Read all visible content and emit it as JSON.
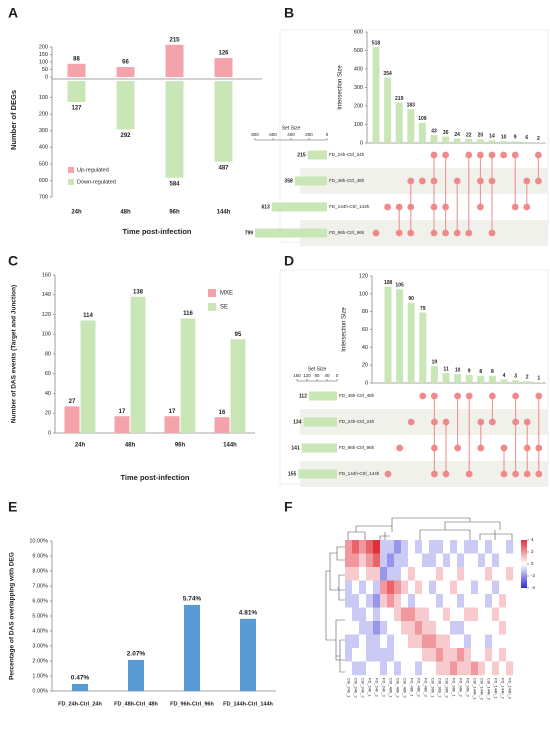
{
  "chart_data": [
    {
      "type": "diverging_bar",
      "panel": "A",
      "ylabel": "Number of DEGs",
      "xlabel": "Time post-infection",
      "categories": [
        "24h",
        "48h",
        "96h",
        "144h"
      ],
      "series": [
        {
          "name": "Up-regulated",
          "color": "#f4a3ab",
          "values": [
            88,
            66,
            215,
            126
          ]
        },
        {
          "name": "Down-regulated",
          "color": "#c9e7b6",
          "axis": "y2",
          "values": [
            127,
            292,
            584,
            487
          ]
        }
      ],
      "ylim": [
        0,
        200
      ],
      "yticks": [
        0,
        50,
        100,
        150,
        200
      ],
      "y2lim": [
        0,
        700
      ],
      "y2ticks": [
        100,
        200,
        300,
        400,
        500,
        600,
        700
      ],
      "y2_inverted": true
    },
    {
      "type": "upset",
      "panel": "B",
      "ylabel": "Intersection Size",
      "set_label": "Set Size",
      "values": [
        518,
        354,
        219,
        183,
        109,
        43,
        35,
        24,
        22,
        20,
        14,
        10,
        9,
        6,
        2
      ],
      "ylim": [
        0,
        600
      ],
      "yticks": [
        0,
        100,
        200,
        300,
        400,
        500,
        600
      ],
      "sets": [
        "FD_24h-Ctrl_24h",
        "FD_48h-Ctrl_48h",
        "FD_144h-Ctrl_144h",
        "FD_96h-Ctrl_96h"
      ],
      "set_sizes": [
        215,
        358,
        613,
        799
      ],
      "set_xlim": [
        0,
        800
      ],
      "set_xticks": [
        0,
        200,
        400,
        600,
        800
      ],
      "intersections": [
        [
          3
        ],
        [
          2
        ],
        [
          2,
          3
        ],
        [
          1,
          2,
          3
        ],
        [
          1
        ],
        [
          0,
          1,
          2,
          3
        ],
        [
          0,
          2,
          3
        ],
        [
          1,
          3
        ],
        [
          0,
          3
        ],
        [
          0,
          1,
          2
        ],
        [
          0,
          1,
          3
        ],
        [
          0
        ],
        [
          0,
          2
        ],
        [
          1,
          2
        ],
        [
          0,
          1
        ]
      ],
      "color": "#c9e7b6",
      "dot_color": "#f08a8a"
    },
    {
      "type": "grouped_bar",
      "panel": "C",
      "ylabel": "Number of DAS events (Target and Junction)",
      "xlabel": "Time post-infection",
      "categories": [
        "24h",
        "48h",
        "96h",
        "144h"
      ],
      "series": [
        {
          "name": "MXE",
          "color": "#f4a3ab",
          "values": [
            27,
            17,
            17,
            16
          ]
        },
        {
          "name": "SE",
          "color": "#c9e7b6",
          "values": [
            114,
            138,
            116,
            95
          ]
        }
      ],
      "ylim": [
        0,
        160
      ],
      "yticks": [
        0,
        20,
        40,
        60,
        80,
        100,
        120,
        140,
        160
      ]
    },
    {
      "type": "upset",
      "panel": "D",
      "ylabel": "Intersection Size",
      "set_label": "Set Size",
      "values": [
        108,
        105,
        90,
        79,
        19,
        11,
        10,
        9,
        8,
        8,
        4,
        3,
        2,
        1
      ],
      "ylim": [
        0,
        120
      ],
      "yticks": [
        0,
        20,
        40,
        60,
        80,
        100,
        120
      ],
      "sets": [
        "FD_48h-Ctrl_48h",
        "FD_24h-Ctrl_24h",
        "FD_96h-Ctrl_96h",
        "FD_144h-Ctrl_144h"
      ],
      "set_sizes": [
        112,
        134,
        141,
        155
      ],
      "set_xlim": [
        0,
        160
      ],
      "set_xticks": [
        0,
        40,
        80,
        120,
        160
      ],
      "intersections": [
        [
          3
        ],
        [
          2
        ],
        [
          1
        ],
        [
          0
        ],
        [
          0,
          1,
          2,
          3
        ],
        [
          1,
          3
        ],
        [
          0,
          2
        ],
        [
          0,
          3
        ],
        [
          1,
          2
        ],
        [
          0,
          1
        ],
        [
          2,
          3
        ],
        [
          0,
          1,
          3
        ],
        [
          1,
          2,
          3
        ],
        [
          0,
          2,
          3
        ]
      ],
      "color": "#c9e7b6",
      "dot_color": "#f08a8a"
    },
    {
      "type": "bar",
      "panel": "E",
      "ylabel": "Percentage of DAS overlapping with DEG",
      "categories": [
        "FD_24h-Ctrl_24h",
        "FD_48h-Ctrl_48h",
        "FD_96h-Ctrl_96h",
        "FD_144h-Ctrl_144h"
      ],
      "values": [
        0.47,
        2.07,
        5.74,
        4.81
      ],
      "value_labels": [
        "0.47%",
        "2.07%",
        "5.74%",
        "4.81%"
      ],
      "color": "#5b9bd5",
      "ylim": [
        0,
        10
      ],
      "yticks": [
        {
          "value": 0,
          "label": "0.00%"
        },
        {
          "value": 1,
          "label": "1.00%"
        },
        {
          "value": 2,
          "label": "2.00%"
        },
        {
          "value": 3,
          "label": "3.00%"
        },
        {
          "value": 4,
          "label": "4.00%"
        },
        {
          "value": 5,
          "label": "5.00%"
        },
        {
          "value": 6,
          "label": "6.00%"
        },
        {
          "value": 7,
          "label": "7.00%"
        },
        {
          "value": 8,
          "label": "8.00%"
        },
        {
          "value": 9,
          "label": "9.00%"
        },
        {
          "value": 10,
          "label": "10.00%"
        }
      ]
    },
    {
      "type": "heatmap",
      "panel": "F",
      "columns": [
        "Ctrl_24h_1",
        "Ctrl_24h_2",
        "Ctrl_24h_3",
        "FD_24h_1",
        "FD_24h_2",
        "FD_24h_3",
        "Ctrl_48h_1",
        "Ctrl_48h_2",
        "Ctrl_48h_3",
        "FD_48h_1",
        "FD_48h_2",
        "FD_48h_3",
        "Ctrl_96h_1",
        "Ctrl_96h_2",
        "Ctrl_96h_3",
        "FD_96h_1",
        "FD_96h_2",
        "FD_96h_3",
        "Ctrl_144h_1",
        "Ctrl_144h_2",
        "Ctrl_144h_3",
        "FD_144h_1",
        "FD_144h_2",
        "FD_144h_3"
      ],
      "values": [
        [
          2,
          3,
          2,
          3,
          4,
          -1,
          -1,
          -2,
          -1,
          0,
          -1,
          0,
          -1,
          -1,
          0,
          -1,
          0,
          -1,
          -1,
          0,
          -1,
          0,
          0,
          -1
        ],
        [
          2,
          2,
          1,
          2,
          3,
          -1,
          -2,
          -1,
          -1,
          0,
          0,
          -1,
          -1,
          0,
          -1,
          0,
          -1,
          0,
          0,
          -1,
          0,
          -1,
          0,
          0
        ],
        [
          1,
          1,
          0,
          1,
          1,
          -2,
          -1,
          -1,
          0,
          1,
          0,
          0,
          0,
          1,
          0,
          0,
          1,
          0,
          0,
          0,
          1,
          0,
          0,
          1
        ],
        [
          -1,
          0,
          -1,
          0,
          -1,
          2,
          3,
          2,
          1,
          0,
          1,
          0,
          -1,
          0,
          0,
          1,
          0,
          0,
          -1,
          0,
          0,
          -1,
          0,
          0
        ],
        [
          -1,
          -1,
          0,
          -1,
          -2,
          1,
          2,
          1,
          0,
          -1,
          0,
          0,
          0,
          -1,
          0,
          0,
          -1,
          0,
          0,
          0,
          -1,
          0,
          1,
          0
        ],
        [
          0,
          -1,
          -1,
          0,
          -1,
          0,
          0,
          1,
          2,
          2,
          1,
          1,
          0,
          0,
          1,
          0,
          0,
          1,
          1,
          0,
          0,
          1,
          0,
          0
        ],
        [
          0,
          0,
          -1,
          -1,
          -2,
          -1,
          0,
          0,
          1,
          1,
          2,
          1,
          1,
          0,
          0,
          -1,
          -1,
          0,
          0,
          0,
          0,
          0,
          1,
          0
        ],
        [
          -1,
          -1,
          0,
          -1,
          -1,
          0,
          -1,
          0,
          0,
          1,
          1,
          2,
          2,
          1,
          1,
          0,
          0,
          -1,
          0,
          0,
          -1,
          0,
          0,
          0
        ],
        [
          -1,
          0,
          0,
          -1,
          -1,
          -1,
          -1,
          0,
          0,
          0,
          0,
          1,
          1,
          2,
          1,
          1,
          2,
          1,
          0,
          0,
          1,
          0,
          1,
          0
        ],
        [
          0,
          -1,
          -1,
          0,
          0,
          -1,
          0,
          -1,
          0,
          0,
          -1,
          0,
          0,
          1,
          1,
          2,
          1,
          1,
          2,
          1,
          0,
          1,
          0,
          1
        ]
      ],
      "vlim": [
        -4,
        4
      ],
      "cticks": [
        4,
        2,
        0,
        -2,
        -4
      ],
      "high_color": "#e0303a",
      "low_color": "#2c2cd4"
    }
  ]
}
